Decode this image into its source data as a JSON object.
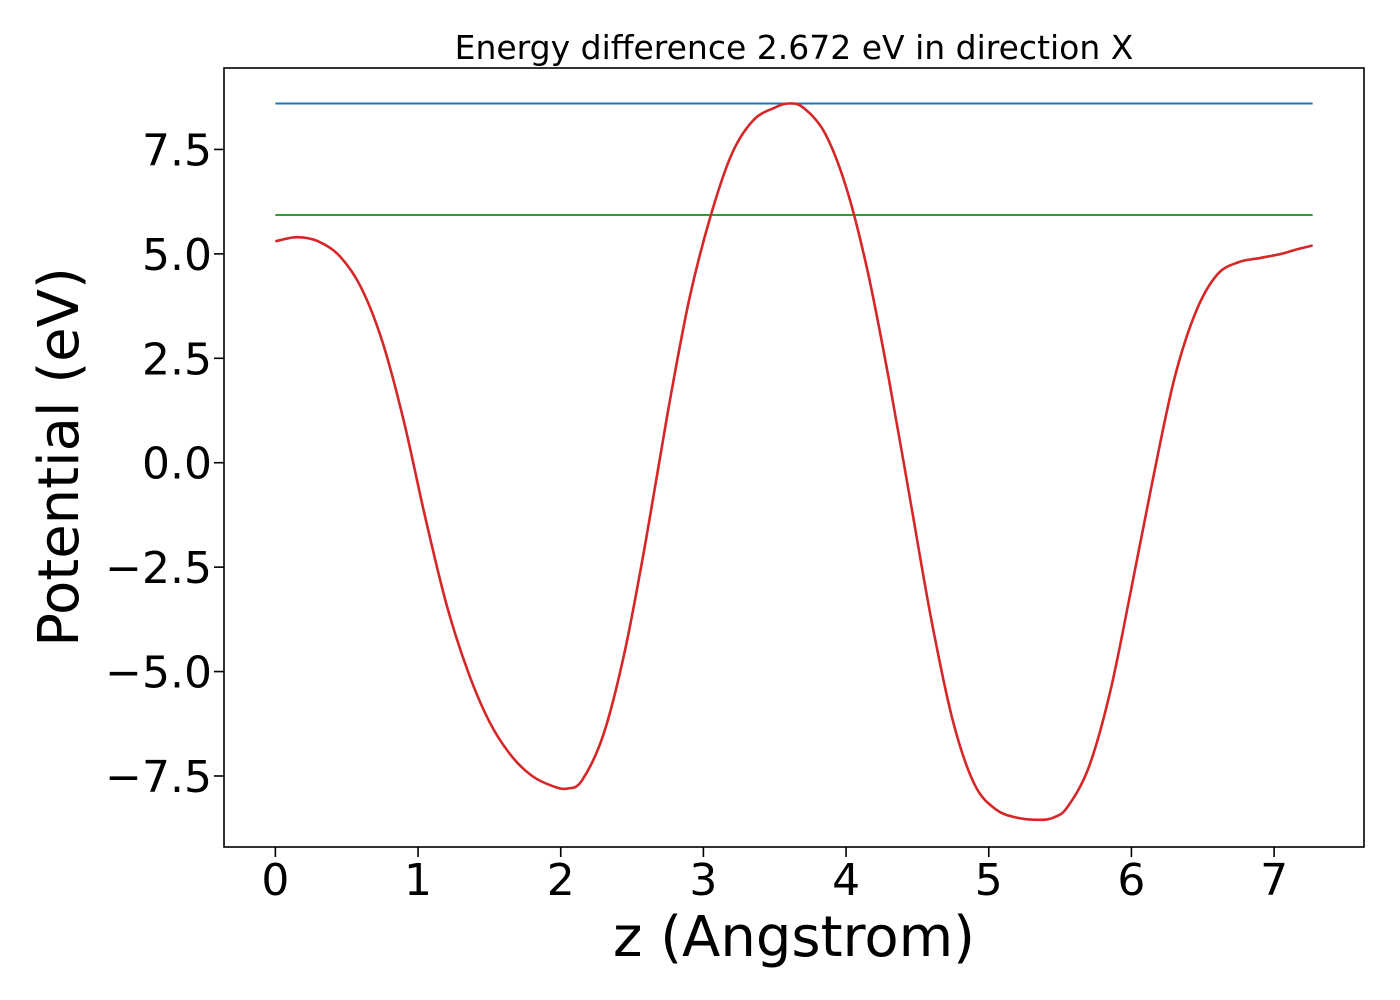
{
  "chart_data": {
    "type": "line",
    "title": "Energy difference 2.672 eV in direction X",
    "xlabel": "z (Angstrom)",
    "ylabel": "Potential (eV)",
    "xlim": [
      -0.36,
      7.63
    ],
    "ylim": [
      -9.2,
      9.45
    ],
    "x_ticks": [
      0,
      1,
      2,
      3,
      4,
      5,
      6,
      7
    ],
    "x_tick_labels": [
      "0",
      "1",
      "2",
      "3",
      "4",
      "5",
      "6",
      "7"
    ],
    "y_ticks": [
      -7.5,
      -5.0,
      -2.5,
      0.0,
      2.5,
      5.0,
      7.5
    ],
    "y_tick_labels": [
      "−7.5",
      "−5.0",
      "−2.5",
      "0.0",
      "2.5",
      "5.0",
      "7.5"
    ],
    "grid": false,
    "legend": false,
    "series": [
      {
        "kind": "hline",
        "color": "#1f77b4",
        "x": [
          0.0,
          7.27
        ],
        "y": [
          8.6,
          8.6
        ]
      },
      {
        "kind": "hline",
        "color": "#2ca02c",
        "x": [
          0.0,
          7.27
        ],
        "y": [
          5.93,
          5.93
        ]
      },
      {
        "kind": "curve",
        "color": "#d62728",
        "x": [
          0.0,
          0.15,
          0.3,
          0.45,
          0.6,
          0.75,
          0.9,
          1.05,
          1.2,
          1.35,
          1.5,
          1.65,
          1.8,
          1.95,
          2.05,
          2.15,
          2.3,
          2.45,
          2.6,
          2.75,
          2.9,
          3.05,
          3.2,
          3.35,
          3.5,
          3.6,
          3.7,
          3.85,
          4.0,
          4.15,
          4.3,
          4.45,
          4.6,
          4.75,
          4.9,
          5.05,
          5.2,
          5.35,
          5.45,
          5.55,
          5.7,
          5.85,
          6.0,
          6.15,
          6.3,
          6.45,
          6.6,
          6.75,
          6.9,
          7.05,
          7.15,
          7.27
        ],
        "y": [
          5.3,
          5.4,
          5.3,
          4.95,
          4.2,
          2.9,
          1.0,
          -1.3,
          -3.4,
          -5.0,
          -6.2,
          -7.0,
          -7.5,
          -7.75,
          -7.8,
          -7.6,
          -6.5,
          -4.5,
          -1.8,
          1.2,
          3.9,
          5.9,
          7.4,
          8.2,
          8.5,
          8.6,
          8.5,
          7.9,
          6.6,
          4.6,
          2.0,
          -0.9,
          -3.8,
          -6.2,
          -7.7,
          -8.3,
          -8.5,
          -8.55,
          -8.5,
          -8.25,
          -7.3,
          -5.5,
          -3.0,
          -0.4,
          2.0,
          3.6,
          4.5,
          4.8,
          4.9,
          5.0,
          5.1,
          5.2
        ]
      }
    ]
  }
}
